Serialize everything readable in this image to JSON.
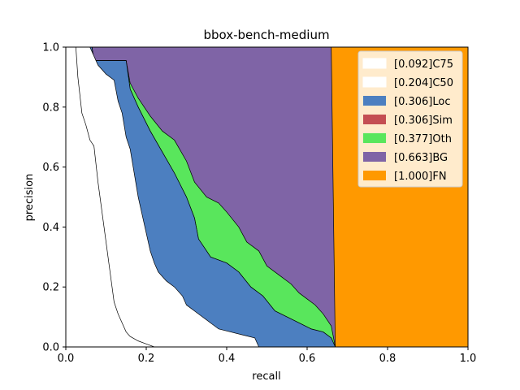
{
  "chart_data": {
    "type": "area",
    "title": "bbox-bench-medium",
    "xlabel": "recall",
    "ylabel": "precision",
    "xlim": [
      0,
      1
    ],
    "ylim": [
      0,
      1
    ],
    "xticks": [
      "0.0",
      "0.2",
      "0.4",
      "0.6",
      "0.8",
      "1.0"
    ],
    "yticks": [
      "0.0",
      "0.2",
      "0.4",
      "0.6",
      "0.8",
      "1.0"
    ],
    "grid": false,
    "legend_position": "top-right",
    "series": [
      {
        "name": "[1.000]FN",
        "color": "#ff9900",
        "points": [
          [
            0.66,
            1.0
          ],
          [
            1.0,
            1.0
          ],
          [
            1.0,
            0.0
          ],
          [
            0.67,
            0.0
          ]
        ]
      },
      {
        "name": "[0.663]BG",
        "color": "#7f64a6",
        "points": [
          [
            0.06,
            1.0
          ],
          [
            0.66,
            1.0
          ],
          [
            0.665,
            0.5
          ],
          [
            0.67,
            0.0
          ]
        ]
      },
      {
        "name": "[0.377]Oth",
        "color": "#59e65c",
        "points": [
          [
            0.065,
            1.0
          ],
          [
            0.07,
            0.955
          ],
          [
            0.15,
            0.955
          ],
          [
            0.16,
            0.88
          ],
          [
            0.18,
            0.83
          ],
          [
            0.21,
            0.77
          ],
          [
            0.24,
            0.72
          ],
          [
            0.27,
            0.69
          ],
          [
            0.3,
            0.62
          ],
          [
            0.32,
            0.55
          ],
          [
            0.35,
            0.5
          ],
          [
            0.38,
            0.48
          ],
          [
            0.4,
            0.45
          ],
          [
            0.43,
            0.4
          ],
          [
            0.45,
            0.35
          ],
          [
            0.48,
            0.32
          ],
          [
            0.5,
            0.27
          ],
          [
            0.53,
            0.24
          ],
          [
            0.56,
            0.21
          ],
          [
            0.58,
            0.18
          ],
          [
            0.6,
            0.16
          ],
          [
            0.62,
            0.14
          ],
          [
            0.64,
            0.11
          ],
          [
            0.66,
            0.07
          ],
          [
            0.67,
            0.0
          ]
        ]
      },
      {
        "name": "[0.306]Sim",
        "color": "#c44e52",
        "points": [
          [
            0.065,
            1.0
          ],
          [
            0.07,
            0.955
          ],
          [
            0.15,
            0.955
          ],
          [
            0.16,
            0.86
          ],
          [
            0.18,
            0.8
          ],
          [
            0.21,
            0.72
          ],
          [
            0.24,
            0.65
          ],
          [
            0.27,
            0.58
          ],
          [
            0.3,
            0.5
          ],
          [
            0.32,
            0.43
          ],
          [
            0.33,
            0.36
          ],
          [
            0.36,
            0.3
          ],
          [
            0.4,
            0.28
          ],
          [
            0.43,
            0.25
          ],
          [
            0.46,
            0.2
          ],
          [
            0.49,
            0.17
          ],
          [
            0.52,
            0.12
          ],
          [
            0.55,
            0.1
          ],
          [
            0.58,
            0.08
          ],
          [
            0.61,
            0.06
          ],
          [
            0.64,
            0.05
          ],
          [
            0.66,
            0.03
          ],
          [
            0.67,
            0.0
          ]
        ]
      },
      {
        "name": "[0.306]Loc",
        "color": "#4c7fc0",
        "points": [
          [
            0.065,
            1.0
          ],
          [
            0.07,
            0.955
          ],
          [
            0.15,
            0.955
          ],
          [
            0.16,
            0.86
          ],
          [
            0.18,
            0.8
          ],
          [
            0.21,
            0.72
          ],
          [
            0.24,
            0.65
          ],
          [
            0.27,
            0.58
          ],
          [
            0.3,
            0.5
          ],
          [
            0.32,
            0.43
          ],
          [
            0.33,
            0.36
          ],
          [
            0.36,
            0.3
          ],
          [
            0.4,
            0.28
          ],
          [
            0.43,
            0.25
          ],
          [
            0.46,
            0.2
          ],
          [
            0.49,
            0.17
          ],
          [
            0.52,
            0.12
          ],
          [
            0.55,
            0.1
          ],
          [
            0.58,
            0.08
          ],
          [
            0.61,
            0.06
          ],
          [
            0.64,
            0.05
          ],
          [
            0.66,
            0.03
          ],
          [
            0.67,
            0.0
          ]
        ]
      },
      {
        "name": "[0.204]C50",
        "color": "#ffffff",
        "points": [
          [
            0.06,
            1.0
          ],
          [
            0.08,
            0.94
          ],
          [
            0.1,
            0.91
          ],
          [
            0.12,
            0.89
          ],
          [
            0.13,
            0.82
          ],
          [
            0.14,
            0.78
          ],
          [
            0.15,
            0.7
          ],
          [
            0.16,
            0.66
          ],
          [
            0.17,
            0.58
          ],
          [
            0.18,
            0.5
          ],
          [
            0.19,
            0.44
          ],
          [
            0.2,
            0.38
          ],
          [
            0.21,
            0.32
          ],
          [
            0.22,
            0.28
          ],
          [
            0.23,
            0.25
          ],
          [
            0.25,
            0.22
          ],
          [
            0.27,
            0.2
          ],
          [
            0.29,
            0.17
          ],
          [
            0.3,
            0.14
          ],
          [
            0.32,
            0.12
          ],
          [
            0.34,
            0.1
          ],
          [
            0.36,
            0.08
          ],
          [
            0.38,
            0.06
          ],
          [
            0.41,
            0.05
          ],
          [
            0.44,
            0.04
          ],
          [
            0.47,
            0.03
          ],
          [
            0.48,
            0.0
          ]
        ]
      },
      {
        "name": "[0.092]C75",
        "color": "#ffffff",
        "points": [
          [
            0.025,
            1.0
          ],
          [
            0.03,
            0.9
          ],
          [
            0.04,
            0.78
          ],
          [
            0.05,
            0.74
          ],
          [
            0.06,
            0.69
          ],
          [
            0.07,
            0.67
          ],
          [
            0.08,
            0.55
          ],
          [
            0.09,
            0.45
          ],
          [
            0.1,
            0.35
          ],
          [
            0.11,
            0.25
          ],
          [
            0.12,
            0.15
          ],
          [
            0.13,
            0.11
          ],
          [
            0.14,
            0.08
          ],
          [
            0.15,
            0.05
          ],
          [
            0.16,
            0.035
          ],
          [
            0.18,
            0.02
          ],
          [
            0.2,
            0.01
          ],
          [
            0.22,
            0.0
          ]
        ]
      }
    ],
    "legend": [
      {
        "label": "[0.092]C75",
        "color": "#ffffff"
      },
      {
        "label": "[0.204]C50",
        "color": "#ffffff"
      },
      {
        "label": "[0.306]Loc",
        "color": "#4c7fc0"
      },
      {
        "label": "[0.306]Sim",
        "color": "#c44e52"
      },
      {
        "label": "[0.377]Oth",
        "color": "#59e65c"
      },
      {
        "label": "[0.663]BG",
        "color": "#7f64a6"
      },
      {
        "label": "[1.000]FN",
        "color": "#ff9900"
      }
    ]
  }
}
